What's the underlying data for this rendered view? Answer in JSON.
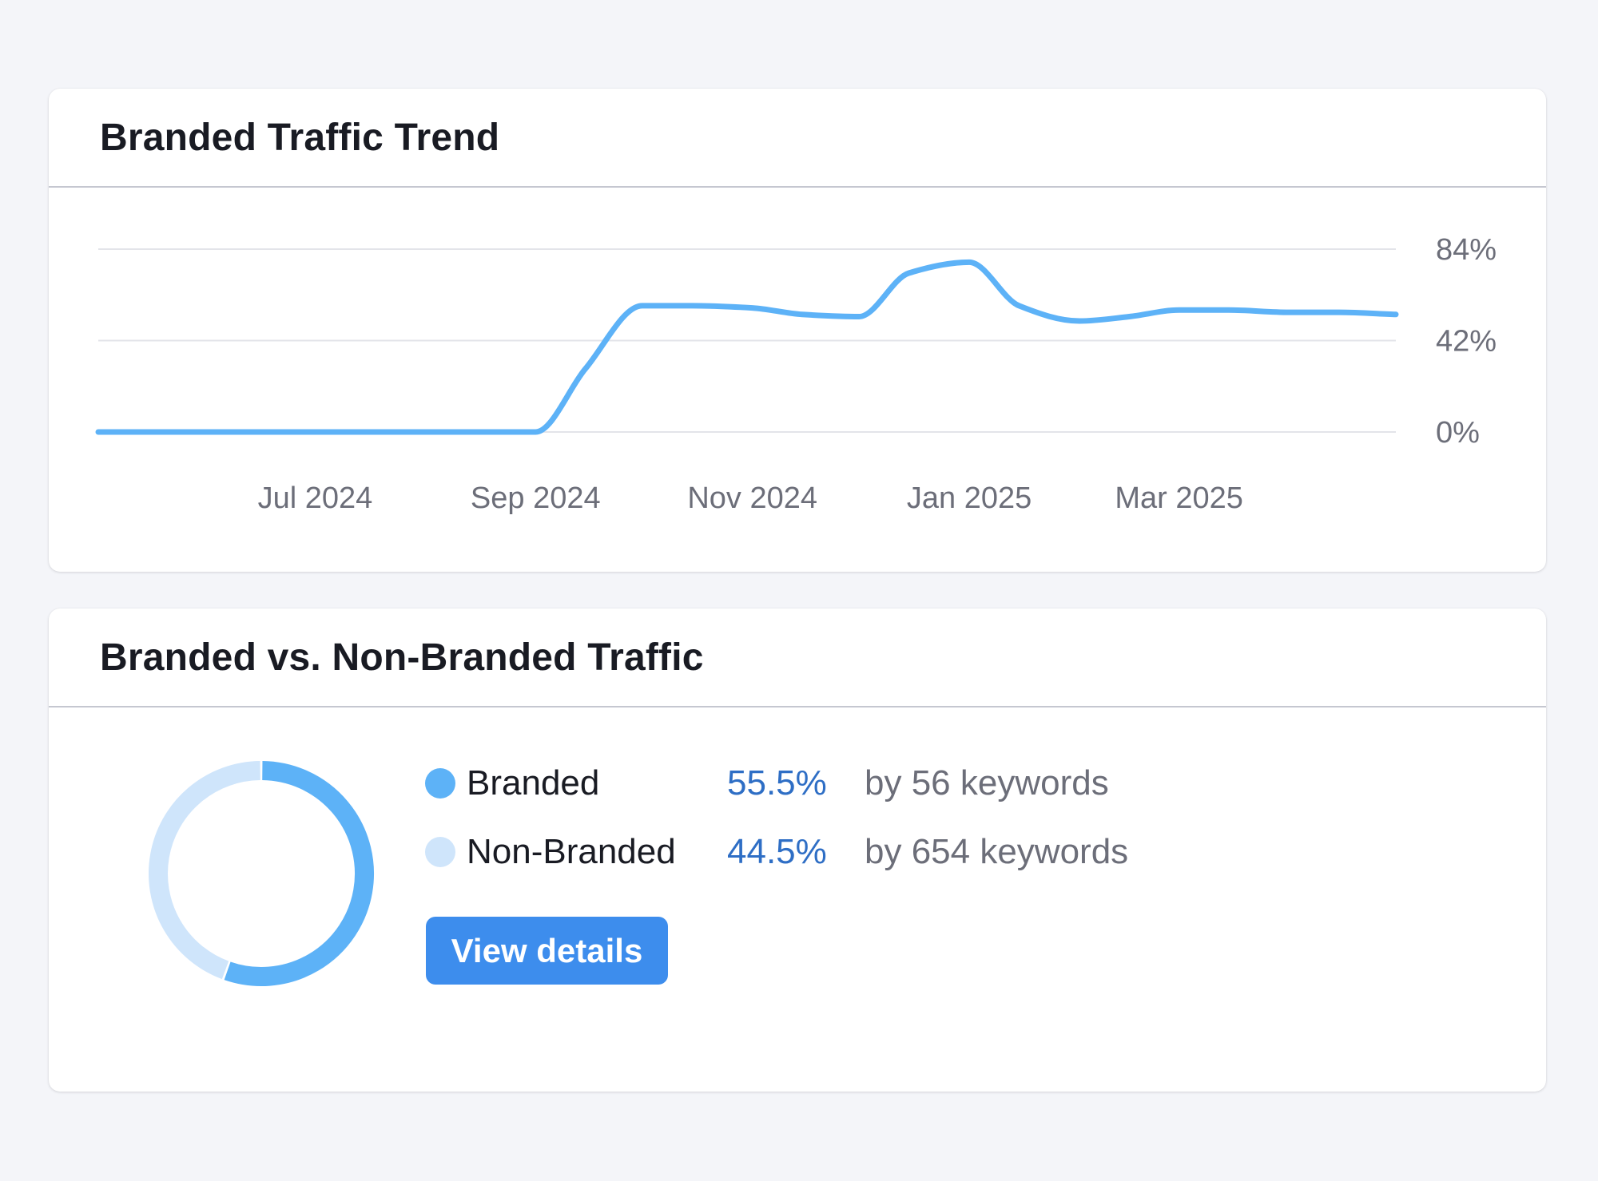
{
  "colors": {
    "page_background": "#f4f5f9",
    "line_series": "#5db2f7",
    "branded": "#5db2f7",
    "non_branded": "#cfe5fb",
    "percent_text": "#2e6ec5",
    "button": "#3d8ded"
  },
  "trend_card": {
    "title": "Branded Traffic Trend"
  },
  "split_card": {
    "title": "Branded vs. Non-Branded Traffic",
    "legend": [
      {
        "label": "Branded",
        "percent": "55.5%",
        "keywords": "by 56 keywords",
        "color": "#5db2f7",
        "value": 55.5
      },
      {
        "label": "Non-Branded",
        "percent": "44.5%",
        "keywords": "by 654 keywords",
        "color": "#cfe5fb",
        "value": 44.5
      }
    ],
    "button_label": "View details"
  },
  "chart_data": [
    {
      "type": "line",
      "title": "Branded Traffic Trend",
      "xlabel": "",
      "ylabel": "",
      "x_ticks": [
        "Jul 2024",
        "Sep 2024",
        "Nov 2024",
        "Jan 2025",
        "Mar 2025"
      ],
      "y_ticks": [
        "84%",
        "42%",
        "0%"
      ],
      "ylim": [
        0,
        84
      ],
      "grid": true,
      "y_axis_side": "right",
      "series": [
        {
          "x": [
            "2024-05-01",
            "2024-06-01",
            "2024-07-01",
            "2024-08-01",
            "2024-09-01",
            "2024-09-15",
            "2024-10-01",
            "2024-10-15",
            "2024-11-01",
            "2024-11-15",
            "2024-12-01",
            "2024-12-15",
            "2025-01-01",
            "2025-01-15",
            "2025-02-01",
            "2025-02-15",
            "2025-03-01",
            "2025-03-15",
            "2025-04-01",
            "2025-04-15",
            "2025-05-01"
          ],
          "y": [
            0,
            0,
            0,
            0,
            0,
            29,
            58,
            58,
            57,
            54,
            53,
            73,
            78,
            58,
            51,
            53,
            56,
            56,
            55,
            55,
            54
          ]
        }
      ]
    },
    {
      "type": "pie",
      "style": "donut",
      "labels": [
        "Branded",
        "Non-Branded"
      ],
      "values": [
        55.5,
        44.5
      ]
    }
  ]
}
